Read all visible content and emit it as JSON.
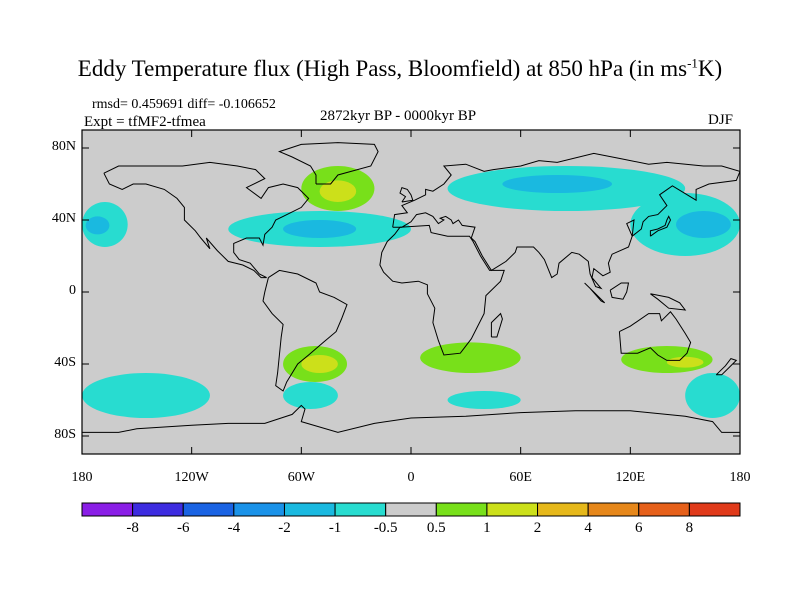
{
  "header": {
    "title_main": "Eddy Temperature flux (High Pass, Bloomfield) at 850 hPa (in ms",
    "title_sup": "-1",
    "title_end": "K)",
    "stats": "rmsd= 0.459691 diff= -0.106652",
    "experiment": "Expt = tfMF2-tfmea",
    "period": "2872kyr BP - 0000kyr BP",
    "season": "DJF"
  },
  "axes": {
    "y_ticks": [
      {
        "label": "80N",
        "lat": 80
      },
      {
        "label": "40N",
        "lat": 40
      },
      {
        "label": "0",
        "lat": 0
      },
      {
        "label": "40S",
        "lat": -40
      },
      {
        "label": "80S",
        "lat": -80
      }
    ],
    "x_ticks": [
      {
        "label": "180",
        "lon": -180
      },
      {
        "label": "120W",
        "lon": -120
      },
      {
        "label": "60W",
        "lon": -60
      },
      {
        "label": "0",
        "lon": 0
      },
      {
        "label": "60E",
        "lon": 60
      },
      {
        "label": "120E",
        "lon": 120
      },
      {
        "label": "180",
        "lon": 180
      }
    ]
  },
  "colorbar": {
    "labels": [
      "-8",
      "-6",
      "-4",
      "-2",
      "-1",
      "-0.5",
      "0.5",
      "1",
      "2",
      "4",
      "6",
      "8"
    ],
    "colors": [
      "#8a1ee6",
      "#3d2ce0",
      "#1a63e3",
      "#1a92e8",
      "#1ab9e0",
      "#28dcd0",
      "#cccccc",
      "#78e01a",
      "#cce01a",
      "#e6b81a",
      "#e6871a",
      "#e6601a",
      "#e03a1a"
    ]
  },
  "chart_data": {
    "type": "heatmap",
    "title": "Eddy Temperature flux (High Pass, Bloomfield) at 850 hPa (in ms-1K)",
    "projection": "cylindrical equidistant",
    "lon_range": [
      -180,
      180
    ],
    "lat_range": [
      -90,
      90
    ],
    "background_color": "#cccccc",
    "regions": [
      {
        "name": "north-pacific-band-west",
        "level": "-1 to -0.5",
        "color": "#28dcd0",
        "lon": [
          -180,
          -155
        ],
        "lat": [
          25,
          50
        ]
      },
      {
        "name": "north-pacific-band-west-core",
        "level": "-2 to -1",
        "color": "#1ab9e0",
        "lon": [
          -178,
          -165
        ],
        "lat": [
          32,
          42
        ]
      },
      {
        "name": "north-atlantic-band",
        "level": "-1 to -0.5",
        "color": "#28dcd0",
        "lon": [
          -100,
          0
        ],
        "lat": [
          25,
          45
        ]
      },
      {
        "name": "north-atlantic-core",
        "level": "-2 to -1",
        "color": "#1ab9e0",
        "lon": [
          -70,
          -30
        ],
        "lat": [
          30,
          40
        ]
      },
      {
        "name": "greenland-positive",
        "level": "0.5 to 1",
        "color": "#78e01a",
        "lon": [
          -60,
          -20
        ],
        "lat": [
          45,
          70
        ]
      },
      {
        "name": "greenland-positive-core",
        "level": "1 to 2",
        "color": "#cce01a",
        "lon": [
          -50,
          -30
        ],
        "lat": [
          50,
          62
        ]
      },
      {
        "name": "siberia-band",
        "level": "-1 to -0.5",
        "color": "#28dcd0",
        "lon": [
          20,
          150
        ],
        "lat": [
          45,
          70
        ]
      },
      {
        "name": "siberia-core",
        "level": "-2 to -1",
        "color": "#1ab9e0",
        "lon": [
          50,
          110
        ],
        "lat": [
          55,
          65
        ]
      },
      {
        "name": "northwest-pacific-band",
        "level": "-1 to -0.5",
        "color": "#28dcd0",
        "lon": [
          120,
          180
        ],
        "lat": [
          20,
          55
        ]
      },
      {
        "name": "northwest-pacific-core",
        "level": "-2 to -1",
        "color": "#1ab9e0",
        "lon": [
          145,
          175
        ],
        "lat": [
          30,
          45
        ]
      },
      {
        "name": "south-america-positive",
        "level": "0.5 to 1",
        "color": "#78e01a",
        "lon": [
          -70,
          -35
        ],
        "lat": [
          -50,
          -30
        ]
      },
      {
        "name": "south-america-core",
        "level": "1 to 2",
        "color": "#cce01a",
        "lon": [
          -60,
          -40
        ],
        "lat": [
          -45,
          -35
        ]
      },
      {
        "name": "south-africa-positive",
        "level": "0.5 to 1",
        "color": "#78e01a",
        "lon": [
          5,
          60
        ],
        "lat": [
          -45,
          -28
        ]
      },
      {
        "name": "australia-positive",
        "level": "0.5 to 1",
        "color": "#78e01a",
        "lon": [
          115,
          165
        ],
        "lat": [
          -45,
          -30
        ]
      },
      {
        "name": "australia-core",
        "level": "1 to 2",
        "color": "#cce01a",
        "lon": [
          140,
          160
        ],
        "lat": [
          -42,
          -36
        ]
      },
      {
        "name": "southern-ocean-pacific",
        "level": "-1 to -0.5",
        "color": "#28dcd0",
        "lon": [
          -180,
          -110
        ],
        "lat": [
          -70,
          -45
        ]
      },
      {
        "name": "southern-ocean-atlantic",
        "level": "-1 to -0.5",
        "color": "#28dcd0",
        "lon": [
          -70,
          -40
        ],
        "lat": [
          -65,
          -50
        ]
      },
      {
        "name": "southern-ocean-indian",
        "level": "-1 to -0.5",
        "color": "#28dcd0",
        "lon": [
          20,
          60
        ],
        "lat": [
          -65,
          -55
        ]
      },
      {
        "name": "southern-ocean-tasman",
        "level": "-1 to -0.5",
        "color": "#28dcd0",
        "lon": [
          150,
          180
        ],
        "lat": [
          -70,
          -45
        ]
      }
    ],
    "continents_outline": true
  }
}
